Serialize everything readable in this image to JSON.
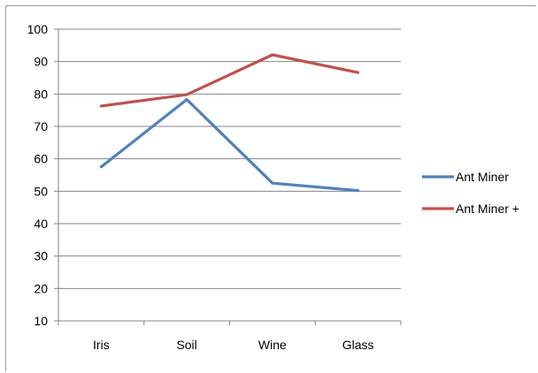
{
  "chart_data": {
    "type": "line",
    "categories": [
      "Iris",
      "Soil",
      "Wine",
      "Glass"
    ],
    "series": [
      {
        "name": "Ant Miner",
        "color": "#4f81bd",
        "values": [
          57.5,
          78.3,
          52.5,
          50.2
        ]
      },
      {
        "name": "Ant Miner +",
        "color": "#c0504d",
        "values": [
          76.3,
          79.8,
          92.1,
          86.6
        ]
      }
    ],
    "yticks": [
      10,
      20,
      30,
      40,
      50,
      60,
      70,
      80,
      90,
      100
    ],
    "ylim": [
      10,
      100
    ],
    "grid": true,
    "legend": "right"
  }
}
